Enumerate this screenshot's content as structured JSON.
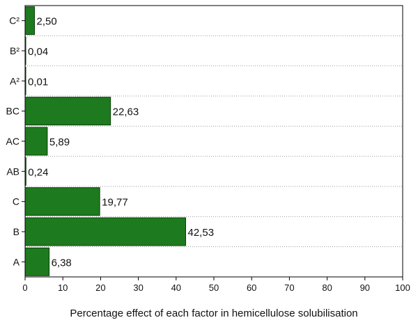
{
  "chart_data": {
    "type": "bar",
    "orientation": "horizontal",
    "title": "",
    "xlabel": "Percentage effect of each factor in hemicellulose solubilisation",
    "ylabel": "",
    "categories": [
      "A",
      "B",
      "C",
      "AB",
      "AC",
      "BC",
      "A²",
      "B²",
      "C²"
    ],
    "values": [
      6.38,
      42.53,
      19.77,
      0.24,
      5.89,
      22.63,
      0.01,
      0.04,
      2.5
    ],
    "data_labels": [
      "6,38",
      "42,53",
      "19,77",
      "0,24",
      "5,89",
      "22,63",
      "0,01",
      "0,04",
      "2,50"
    ],
    "xlim": [
      0,
      100
    ],
    "x_ticks": [
      0,
      10,
      20,
      30,
      40,
      50,
      60,
      70,
      80,
      90,
      100
    ],
    "grid": "dotted horizontal separators between categories",
    "legend": "none",
    "bar_color": "#1e7a1e",
    "bar_edge_color": "#0b3d0b"
  }
}
